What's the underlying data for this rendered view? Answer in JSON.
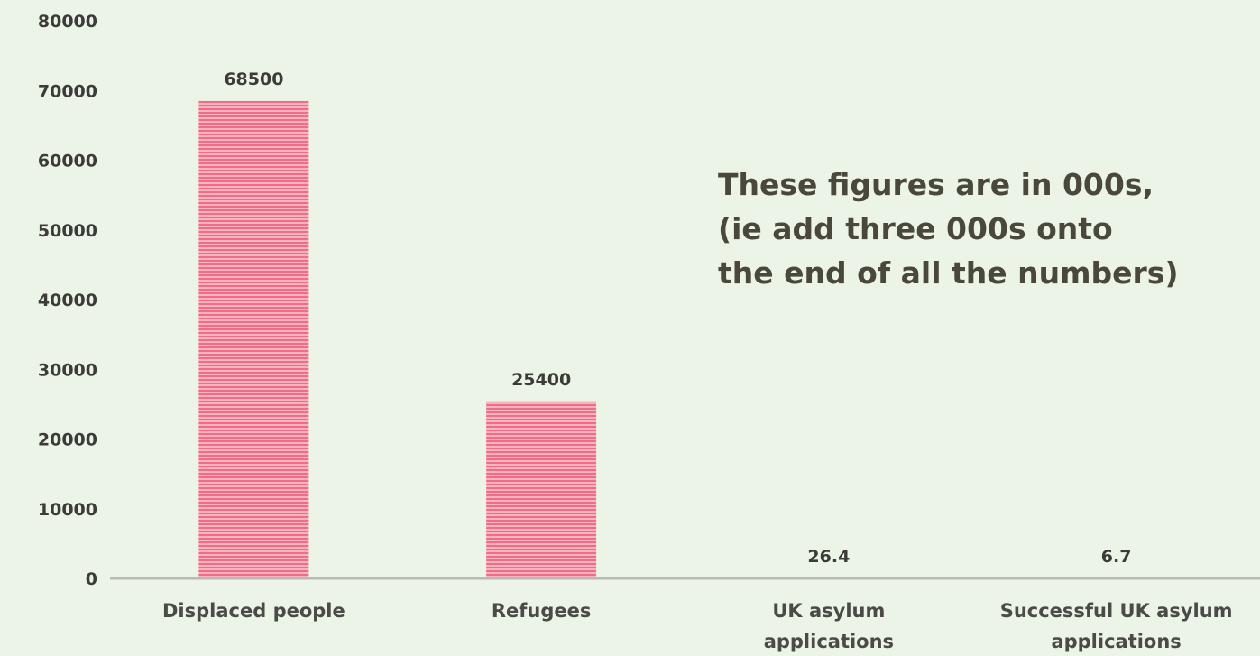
{
  "chart_data": {
    "type": "bar",
    "categories": [
      [
        "Displaced people"
      ],
      [
        "Refugees"
      ],
      [
        "UK asylum",
        "applications"
      ],
      [
        "Successful UK asylum",
        "applications"
      ]
    ],
    "values": [
      68500,
      25400,
      26.4,
      6.7
    ],
    "data_labels": [
      "68500",
      "25400",
      "26.4",
      "6.7"
    ],
    "ylim": [
      0,
      80000
    ],
    "yticks": [
      "0",
      "10000",
      "20000",
      "30000",
      "40000",
      "50000",
      "60000",
      "70000",
      "80000"
    ],
    "grid": false,
    "bar_color": "#f06e86",
    "annotation": [
      "These figures are in 000s,",
      "(ie add three 000s onto",
      "the end of all the numbers)"
    ]
  }
}
